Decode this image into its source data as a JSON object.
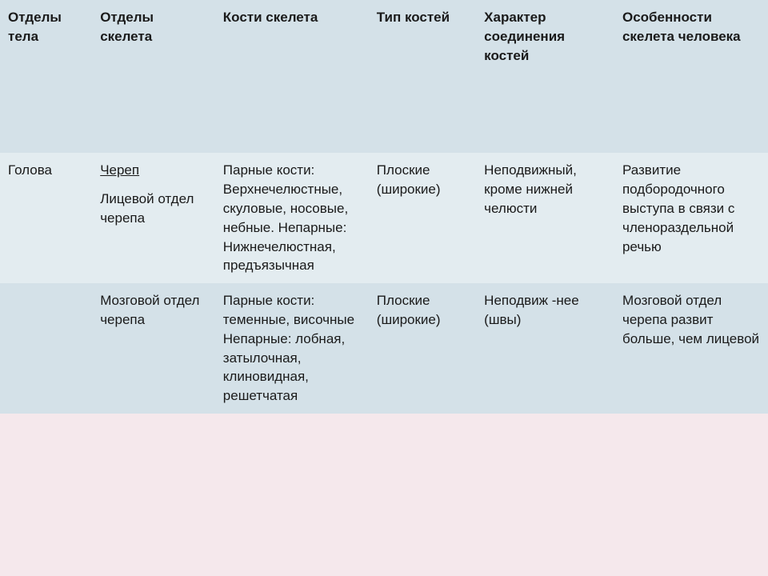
{
  "table": {
    "columns": [
      {
        "label": "Отделы тела"
      },
      {
        "label": "Отделы скелета"
      },
      {
        "label": "Кости скелета"
      },
      {
        "label": "Тип костей"
      },
      {
        "label": "Характер соединения костей"
      },
      {
        "label": "Особенности скелета человека"
      }
    ],
    "rows": [
      {
        "body_section": "Голова",
        "skeleton_section_main": "Череп",
        "skeleton_section_sub": "Лицевой отдел черепа",
        "bones": "Парные кости: Верхнечелюстные, скуловые, носовые, небные. Непарные: Нижнечелюстная, предъязычная",
        "bone_type": "Плоские (широкие)",
        "connection": "Неподвижный, кроме нижней челюсти",
        "features": "Развитие подбородочного выступа в связи с членораздельной речью"
      },
      {
        "body_section": "",
        "skeleton_section_main": "",
        "skeleton_section_sub": "Мозговой отдел черепа",
        "bones": "Парные кости: теменные, височные Непарные: лобная, затылочная, клиновидная, решетчатая",
        "bone_type": "Плоские (широкие)",
        "connection": "Неподвиж -нее (швы)",
        "features": "Мозговой отдел черепа развит больше, чем лицевой"
      }
    ],
    "colors": {
      "header_bg": "#d4e1e8",
      "row_light_bg": "#e3ecf0",
      "row_lighter_bg": "#d4e1e8",
      "page_bg": "#f5e8ec",
      "text": "#1a1a1a"
    },
    "typography": {
      "font_family": "Arial",
      "cell_fontsize": 17,
      "header_weight": "bold"
    }
  }
}
